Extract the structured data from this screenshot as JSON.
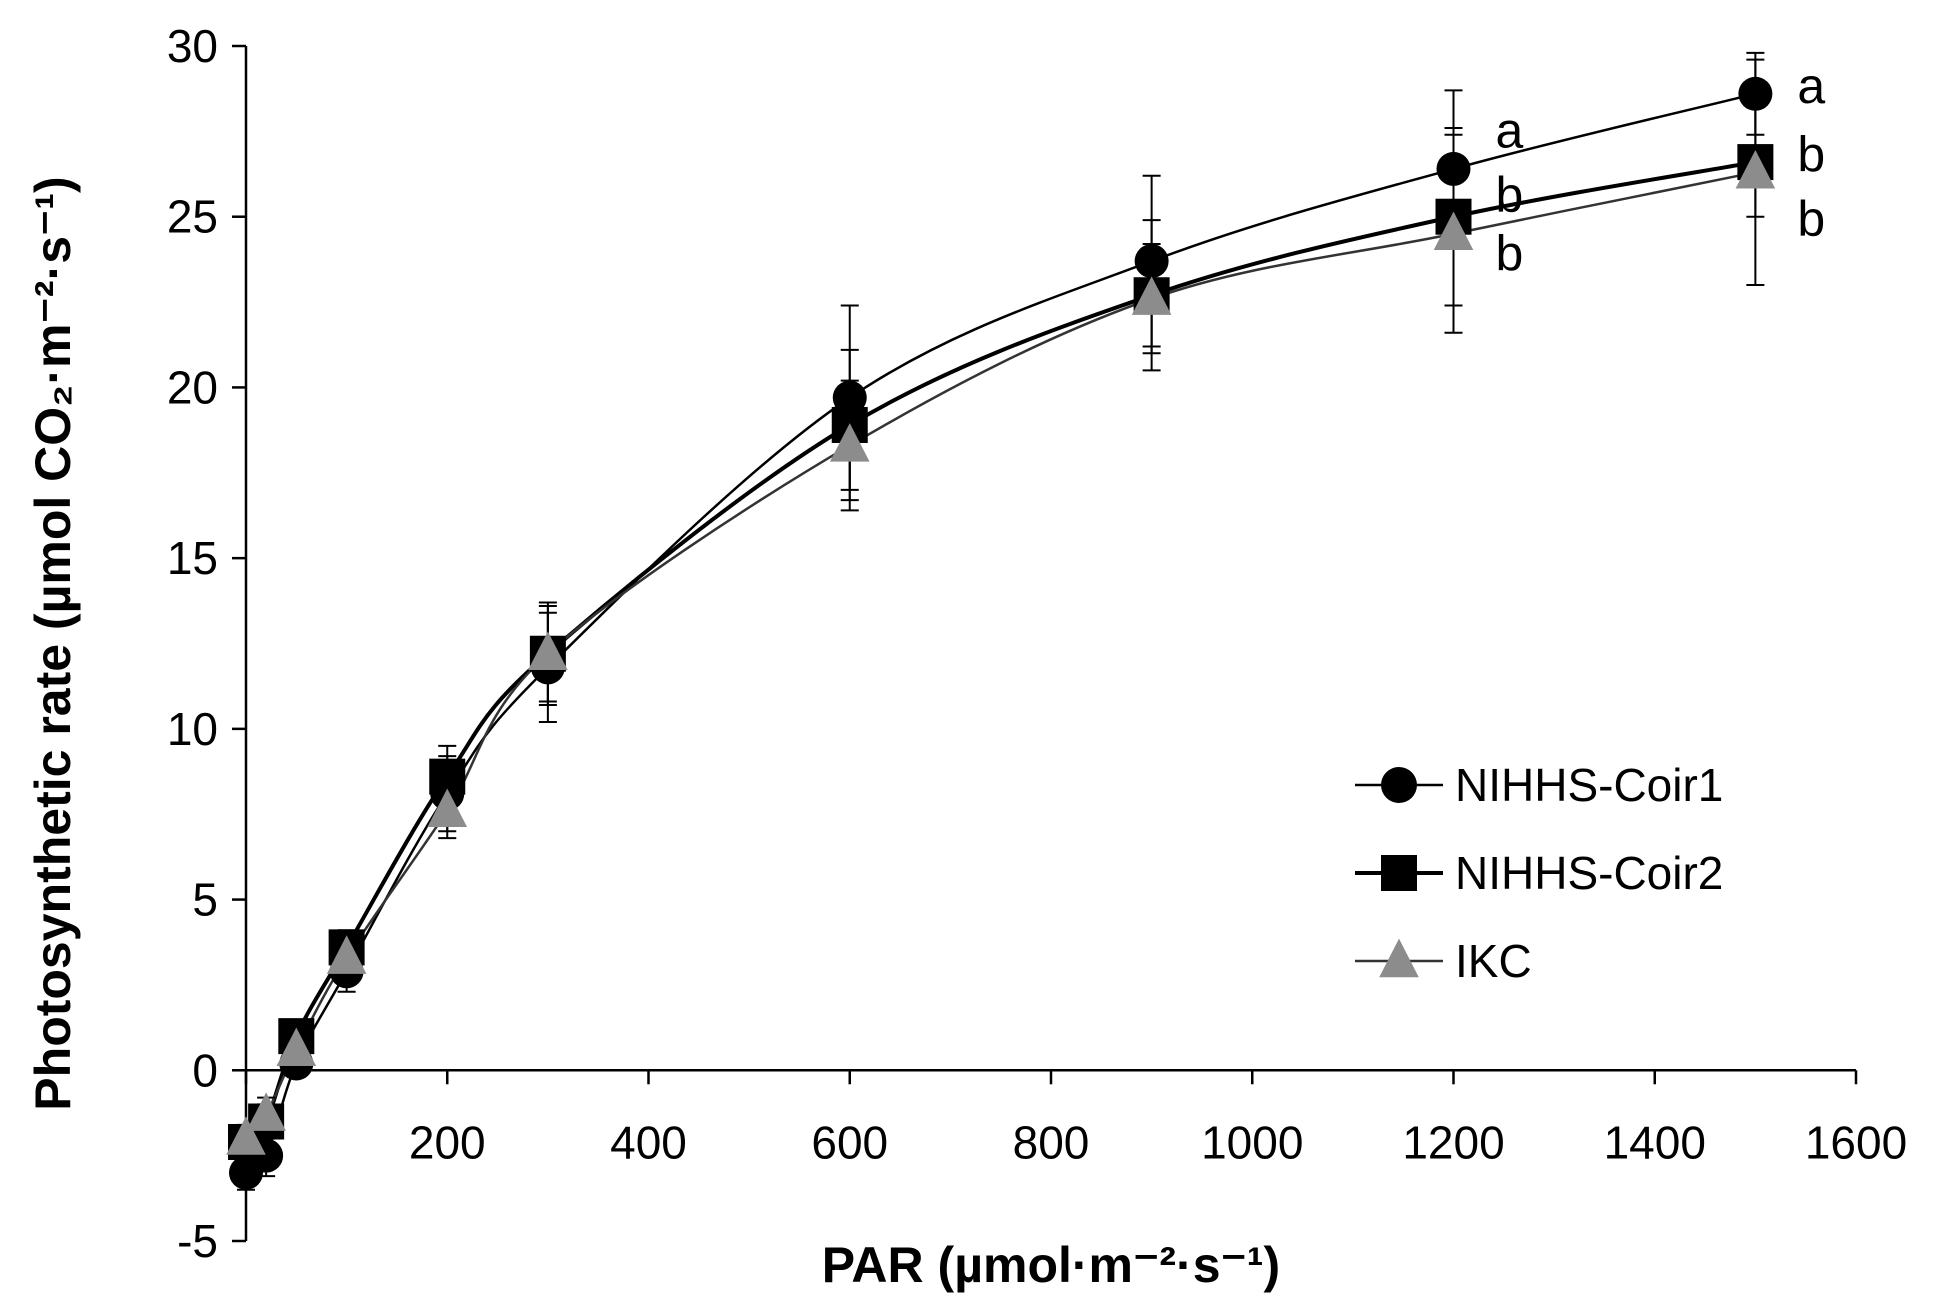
{
  "chart_data": {
    "type": "line",
    "title": "",
    "xlabel": "PAR (µmol·m⁻²·s⁻¹)",
    "ylabel": "Photosynthetic rate (µmol CO₂·m⁻²·s⁻¹)",
    "xlim": [
      0,
      1600
    ],
    "ylim": [
      -5,
      30
    ],
    "xticks": [
      0,
      200,
      400,
      600,
      800,
      1000,
      1200,
      1400,
      1600
    ],
    "yticks": [
      -5,
      0,
      5,
      10,
      15,
      20,
      25,
      30
    ],
    "xtick_labels": [
      "0",
      "200",
      "400",
      "600",
      "800",
      "1000",
      "1200",
      "1400",
      "1600"
    ],
    "ytick_labels": [
      "-5",
      "0",
      "5",
      "10",
      "15",
      "20",
      "25",
      "30"
    ],
    "x": [
      0,
      20,
      50,
      100,
      200,
      300,
      600,
      900,
      1200,
      1500
    ],
    "series": [
      {
        "name": "NIHHS-Coir1",
        "marker": "circle",
        "color": "#000000",
        "values": [
          -3.0,
          -2.5,
          0.2,
          2.9,
          8.1,
          11.8,
          19.7,
          23.7,
          26.4,
          28.6
        ],
        "errors": [
          0.5,
          0.6,
          0.4,
          0.6,
          1.1,
          1.6,
          2.7,
          2.5,
          2.3,
          1.2
        ]
      },
      {
        "name": "NIHHS-Coir2",
        "marker": "square",
        "color": "#000000",
        "values": [
          -2.1,
          -1.5,
          1.0,
          3.6,
          8.6,
          12.2,
          18.9,
          22.7,
          25.0,
          26.6
        ],
        "errors": [
          0.4,
          0.5,
          0.3,
          0.5,
          0.9,
          1.5,
          2.2,
          2.2,
          2.6,
          1.6
        ]
      },
      {
        "name": "IKC",
        "marker": "triangle",
        "color": "#8c8c8c",
        "values": [
          -2.0,
          -1.3,
          0.6,
          3.3,
          7.6,
          12.2,
          18.3,
          22.6,
          24.5,
          26.3
        ],
        "errors": [
          0.4,
          0.5,
          0.3,
          0.5,
          0.8,
          1.4,
          1.9,
          1.6,
          2.9,
          3.3
        ]
      }
    ],
    "significance_labels": [
      {
        "series": "NIHHS-Coir1",
        "x": 1200,
        "y": 27.5,
        "text": "a"
      },
      {
        "series": "NIHHS-Coir2",
        "x": 1200,
        "y": 25.6,
        "text": "b"
      },
      {
        "series": "IKC",
        "x": 1200,
        "y": 23.9,
        "text": "b"
      },
      {
        "series": "NIHHS-Coir1",
        "x": 1500,
        "y": 28.8,
        "text": "a"
      },
      {
        "series": "NIHHS-Coir2",
        "x": 1500,
        "y": 26.8,
        "text": "b"
      },
      {
        "series": "IKC",
        "x": 1500,
        "y": 24.9,
        "text": "b"
      }
    ],
    "legend": {
      "position": "center-right",
      "entries": [
        "NIHHS-Coir1",
        "NIHHS-Coir2",
        "IKC"
      ]
    },
    "grid": false
  }
}
